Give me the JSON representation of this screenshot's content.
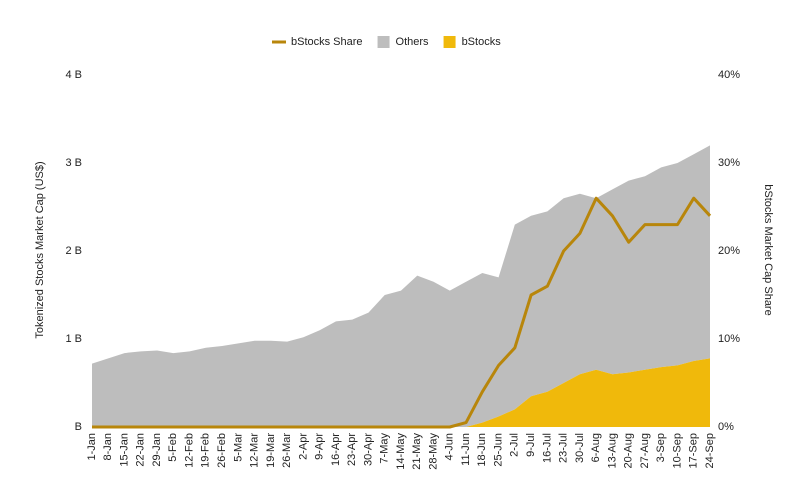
{
  "chart_data": {
    "type": "area",
    "y_label": "Tokenized Stocks Market Cap (US$)",
    "y2_label": "bStocks Market Cap Share",
    "categories": [
      "1-Jan",
      "8-Jan",
      "15-Jan",
      "22-Jan",
      "29-Jan",
      "5-Feb",
      "12-Feb",
      "19-Feb",
      "26-Feb",
      "5-Mar",
      "12-Mar",
      "19-Mar",
      "26-Mar",
      "2-Apr",
      "9-Apr",
      "16-Apr",
      "23-Apr",
      "30-Apr",
      "7-May",
      "14-May",
      "21-May",
      "28-May",
      "4-Jun",
      "11-Jun",
      "18-Jun",
      "25-Jun",
      "2-Jul",
      "9-Jul",
      "16-Jul",
      "23-Jul",
      "30-Jul",
      "6-Aug",
      "13-Aug",
      "20-Aug",
      "27-Aug",
      "3-Sep",
      "10-Sep",
      "17-Sep",
      "24-Sep"
    ],
    "series": [
      {
        "name": "bStocks Share",
        "type": "line",
        "axis": "y2",
        "color": "#b8860b",
        "values": [
          0,
          0,
          0,
          0,
          0,
          0,
          0,
          0,
          0,
          0,
          0,
          0,
          0,
          0,
          0,
          0,
          0,
          0,
          0,
          0,
          0,
          0,
          0,
          0.5,
          4,
          7,
          9,
          15,
          16,
          20,
          22,
          26,
          24,
          21,
          23,
          23,
          23,
          26,
          24
        ]
      },
      {
        "name": "Others",
        "type": "area",
        "color": "#bdbdbd",
        "values": [
          0.72,
          0.78,
          0.84,
          0.86,
          0.87,
          0.84,
          0.86,
          0.9,
          0.92,
          0.95,
          0.98,
          0.98,
          0.97,
          1.02,
          1.1,
          1.2,
          1.22,
          1.3,
          1.5,
          1.55,
          1.72,
          1.65,
          1.55,
          1.65,
          1.7,
          1.58,
          2.1,
          2.05,
          2.05,
          2.1,
          2.05,
          1.95,
          2.1,
          2.18,
          2.2,
          2.27,
          2.3,
          2.35,
          2.42
        ]
      },
      {
        "name": "bStocks",
        "type": "area",
        "color": "#f0b90b",
        "values": [
          0,
          0,
          0,
          0,
          0,
          0,
          0,
          0,
          0,
          0,
          0,
          0,
          0,
          0,
          0,
          0,
          0,
          0,
          0,
          0,
          0,
          0,
          0,
          0,
          0.05,
          0.12,
          0.2,
          0.35,
          0.4,
          0.5,
          0.6,
          0.65,
          0.6,
          0.62,
          0.65,
          0.68,
          0.7,
          0.75,
          0.78
        ]
      }
    ],
    "ylim": [
      0,
      4
    ],
    "yticks": [
      {
        "value": 0,
        "label": "B"
      },
      {
        "value": 1,
        "label": "1 B"
      },
      {
        "value": 2,
        "label": "2 B"
      },
      {
        "value": 3,
        "label": "3 B"
      },
      {
        "value": 4,
        "label": "4 B"
      }
    ],
    "y2lim": [
      0,
      40
    ],
    "y2ticks": [
      {
        "value": 0,
        "label": "0%"
      },
      {
        "value": 10,
        "label": "10%"
      },
      {
        "value": 20,
        "label": "20%"
      },
      {
        "value": 30,
        "label": "30%"
      },
      {
        "value": 40,
        "label": "40%"
      }
    ],
    "grid": false,
    "legend": "top"
  }
}
